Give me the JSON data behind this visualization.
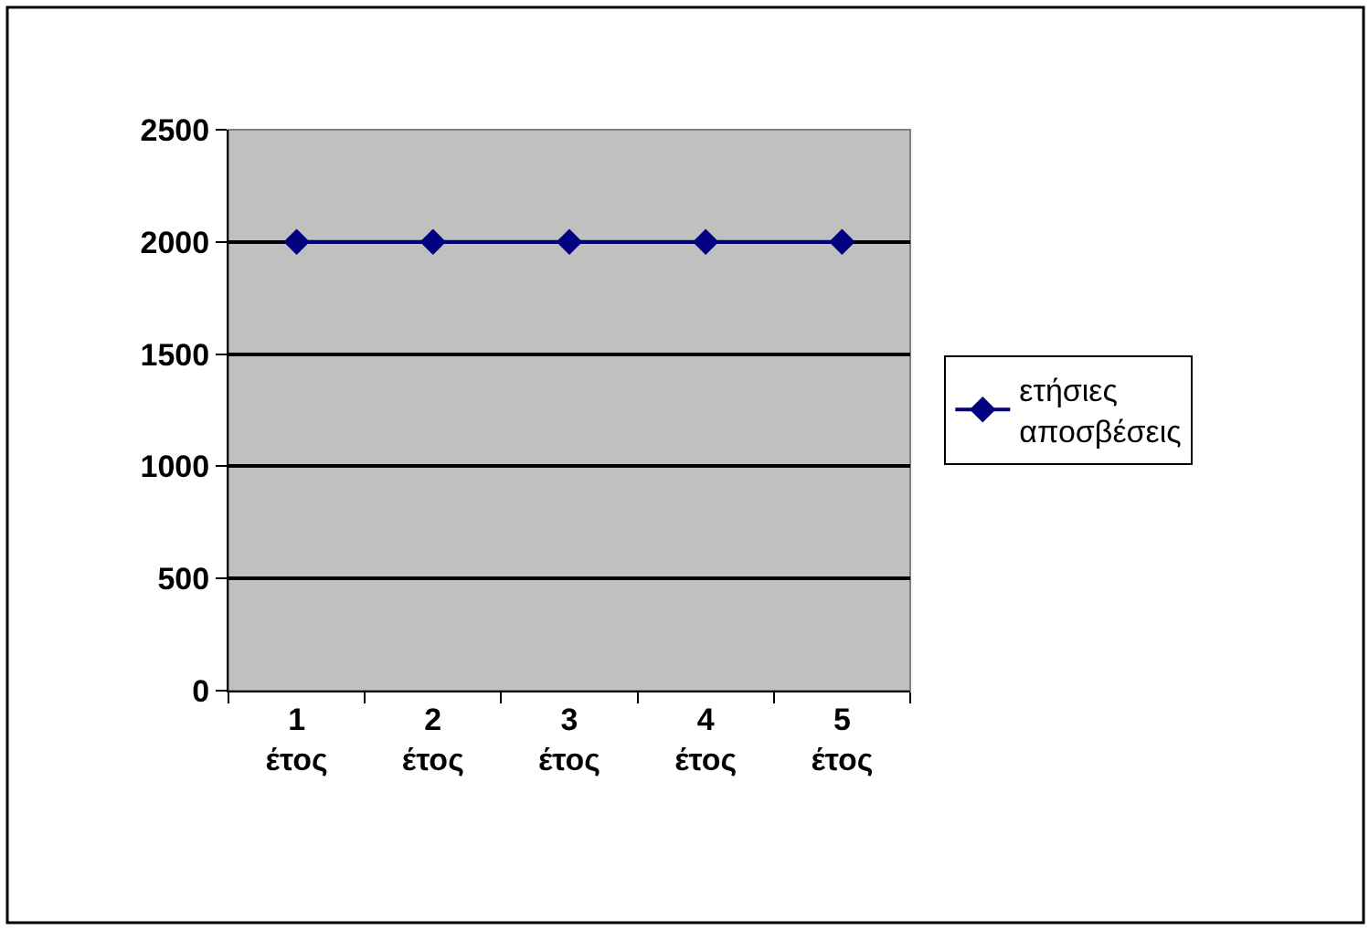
{
  "chart_data": {
    "type": "line",
    "categories": [
      "1\nέτος",
      "2\nέτος",
      "3\nέτος",
      "4\nέτος",
      "5\nέτος"
    ],
    "series": [
      {
        "name": "ετήσιες\nαποσβέσεις",
        "color": "#000080",
        "values": [
          2000,
          2000,
          2000,
          2000,
          2000
        ]
      }
    ],
    "ylim": [
      0,
      2500
    ],
    "yticks": [
      0,
      500,
      1000,
      1500,
      2000,
      2500
    ],
    "grid": "y",
    "legend": "right",
    "marker": "diamond",
    "line_style": "solid"
  }
}
